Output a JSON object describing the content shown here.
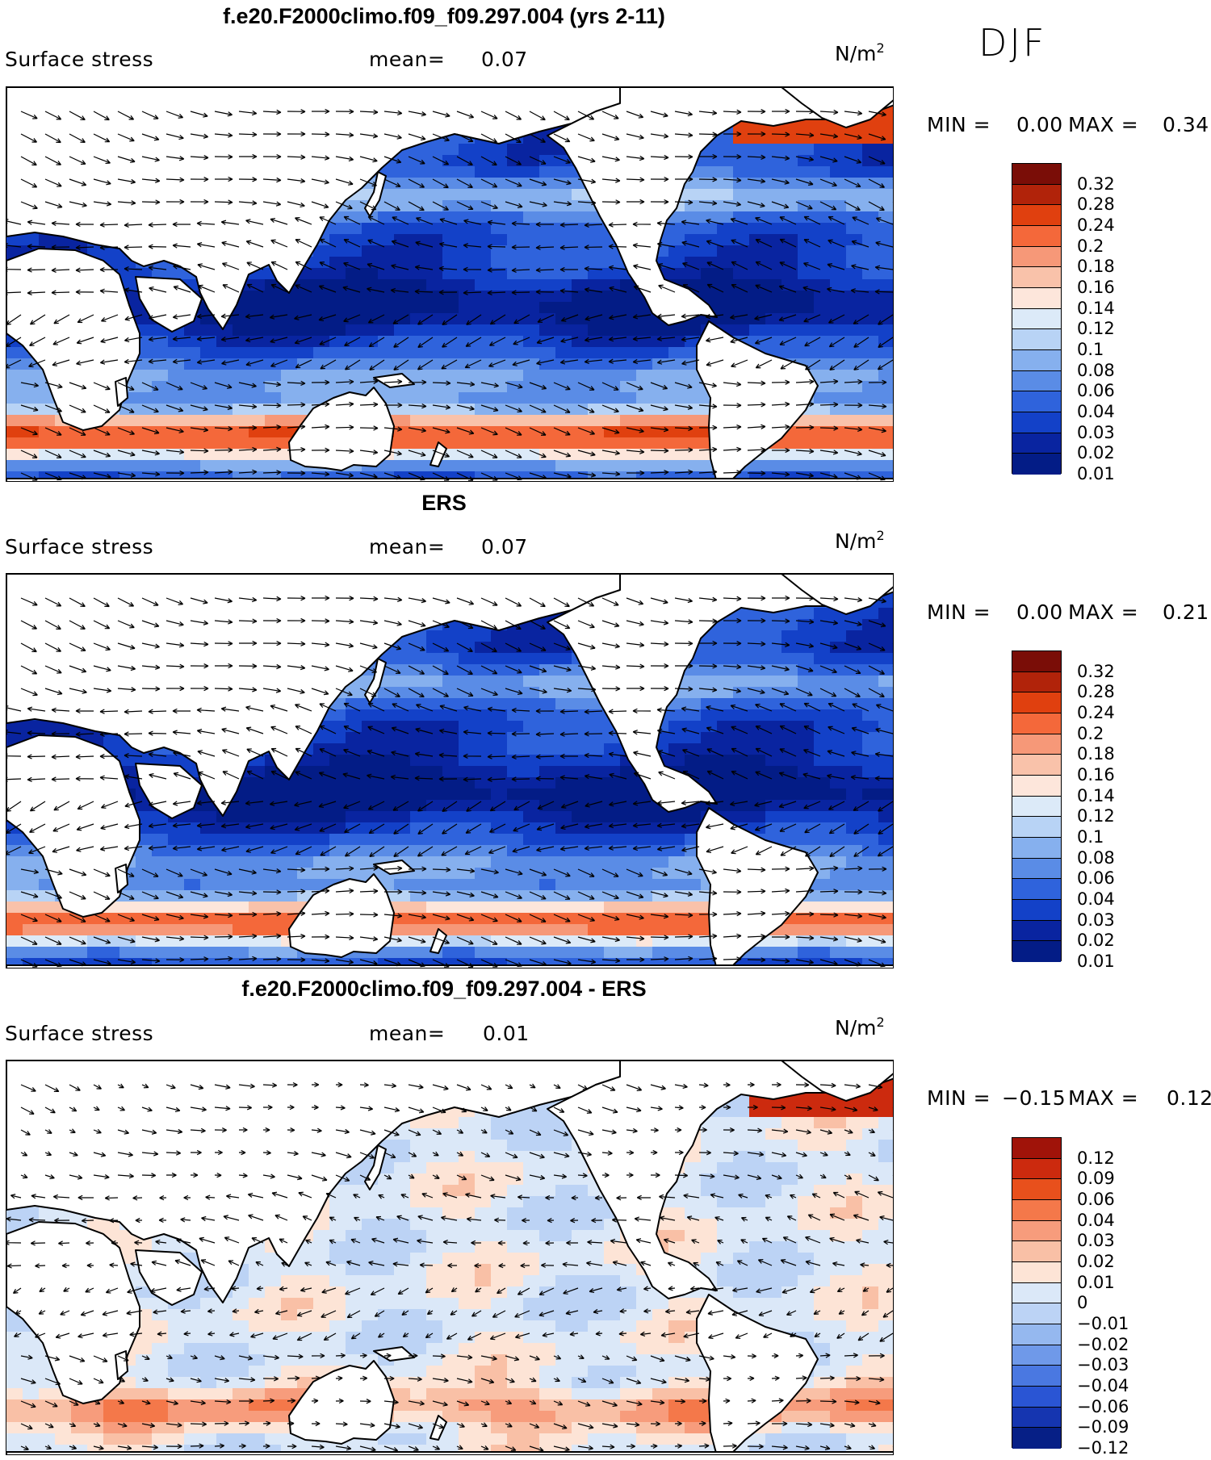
{
  "season": "DJF",
  "colors": {
    "land": "#ffffff",
    "coast": "#000000",
    "arrow": "#000000",
    "abs_scale": [
      "#7a0d07",
      "#b1230a",
      "#e0400f",
      "#f4683a",
      "#f69878",
      "#f9c2aa",
      "#fde6db",
      "#dceaf8",
      "#b8d3f5",
      "#86b0ee",
      "#5a8ce6",
      "#2f63dc",
      "#1341c8",
      "#0924a0",
      "#031c86"
    ],
    "diff_scale": [
      "#a01309",
      "#cc2a0e",
      "#e8501c",
      "#f4784a",
      "#f79c7c",
      "#f9c0a6",
      "#fde4d6",
      "#dbe8f8",
      "#bcd3f5",
      "#95b8ef",
      "#6f99e9",
      "#4a78e1",
      "#2a55d4",
      "#1535b0",
      "#061f86"
    ]
  },
  "panels": [
    {
      "title": "f.e20.F2000climo.f09_f09.297.004 (yrs 2-11)",
      "variable": "Surface stress",
      "mean_label": "mean=",
      "mean_value": "0.07",
      "units": "N/m",
      "units_exp": "2",
      "min_label": "MIN =",
      "min_value": "0.00",
      "max_label": "MAX =",
      "max_value": "0.34",
      "scale": "abs",
      "colorbar_ticks": [
        "0.32",
        "0.28",
        "0.24",
        "0.2",
        "0.18",
        "0.16",
        "0.14",
        "0.12",
        "0.1",
        "0.08",
        "0.06",
        "0.04",
        "0.03",
        "0.02",
        "0.01"
      ]
    },
    {
      "title": "ERS",
      "variable": "Surface stress",
      "mean_label": "mean=",
      "mean_value": "0.07",
      "units": "N/m",
      "units_exp": "2",
      "min_label": "MIN =",
      "min_value": "0.00",
      "max_label": "MAX =",
      "max_value": "0.21",
      "scale": "abs",
      "colorbar_ticks": [
        "0.32",
        "0.28",
        "0.24",
        "0.2",
        "0.18",
        "0.16",
        "0.14",
        "0.12",
        "0.1",
        "0.08",
        "0.06",
        "0.04",
        "0.03",
        "0.02",
        "0.01"
      ]
    },
    {
      "title": "f.e20.F2000climo.f09_f09.297.004 - ERS",
      "variable": "Surface stress",
      "mean_label": "mean=",
      "mean_value": "0.01",
      "units": "N/m",
      "units_exp": "2",
      "min_label": "MIN =",
      "min_value": "−0.15",
      "max_label": "MAX =",
      "max_value": "0.12",
      "scale": "diff",
      "colorbar_ticks": [
        "0.12",
        "0.09",
        "0.06",
        "0.04",
        "0.03",
        "0.02",
        "0.01",
        "0",
        "−0.01",
        "−0.02",
        "−0.03",
        "−0.04",
        "−0.06",
        "−0.09",
        "−0.12"
      ]
    }
  ]
}
